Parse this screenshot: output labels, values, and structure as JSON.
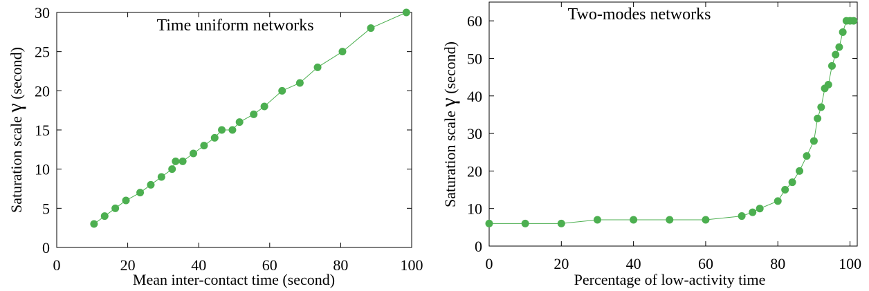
{
  "chart_data": [
    {
      "type": "line",
      "title": "Time uniform networks",
      "xlabel": "Mean inter-contact time (second)",
      "ylabel_text": "Saturation scale",
      "ylabel_symbol": "γ",
      "ylabel_unit": "(second)",
      "xlim": [
        0,
        100
      ],
      "ylim": [
        0,
        30
      ],
      "xticks": [
        0,
        20,
        40,
        60,
        80,
        100
      ],
      "yticks": [
        0,
        5,
        10,
        15,
        20,
        25,
        30
      ],
      "grid": false,
      "color": "#4caf50",
      "series": [
        {
          "x": [
            10.5,
            13.5,
            16.5,
            19.5,
            23.5,
            26.5,
            29.5,
            32.5,
            33.5,
            35.5,
            38.5,
            41.5,
            44.5,
            46.5,
            49.5,
            51.5,
            55.5,
            58.5,
            63.5,
            68.5,
            73.5,
            80.5,
            88.5,
            98.5
          ],
          "y": [
            3,
            4,
            5,
            6,
            7,
            8,
            9,
            10,
            11,
            11,
            12,
            13,
            14,
            15,
            15,
            16,
            17,
            18,
            20,
            21,
            23,
            25,
            28,
            30
          ]
        }
      ]
    },
    {
      "type": "line",
      "title": "Two-modes networks",
      "xlabel": "Percentage of low-activity time",
      "ylabel_text": "Saturation scale",
      "ylabel_symbol": "γ",
      "ylabel_unit": "(second)",
      "xlim": [
        0,
        102
      ],
      "ylim": [
        0,
        65
      ],
      "xticks": [
        0,
        20,
        40,
        60,
        80,
        100
      ],
      "yticks": [
        0,
        10,
        20,
        30,
        40,
        50,
        60
      ],
      "grid": false,
      "color": "#4caf50",
      "series": [
        {
          "x": [
            0,
            10,
            20,
            30,
            40,
            50,
            60,
            70,
            73,
            75,
            80,
            82,
            84,
            86,
            88,
            90,
            91,
            92,
            93,
            94,
            95,
            96,
            97,
            98,
            99,
            100,
            101
          ],
          "y": [
            6,
            6,
            6,
            7,
            7,
            7,
            7,
            8,
            9,
            10,
            12,
            15,
            17,
            20,
            24,
            28,
            34,
            37,
            42,
            43,
            48,
            51,
            53,
            57,
            60,
            60,
            60
          ]
        }
      ]
    }
  ]
}
